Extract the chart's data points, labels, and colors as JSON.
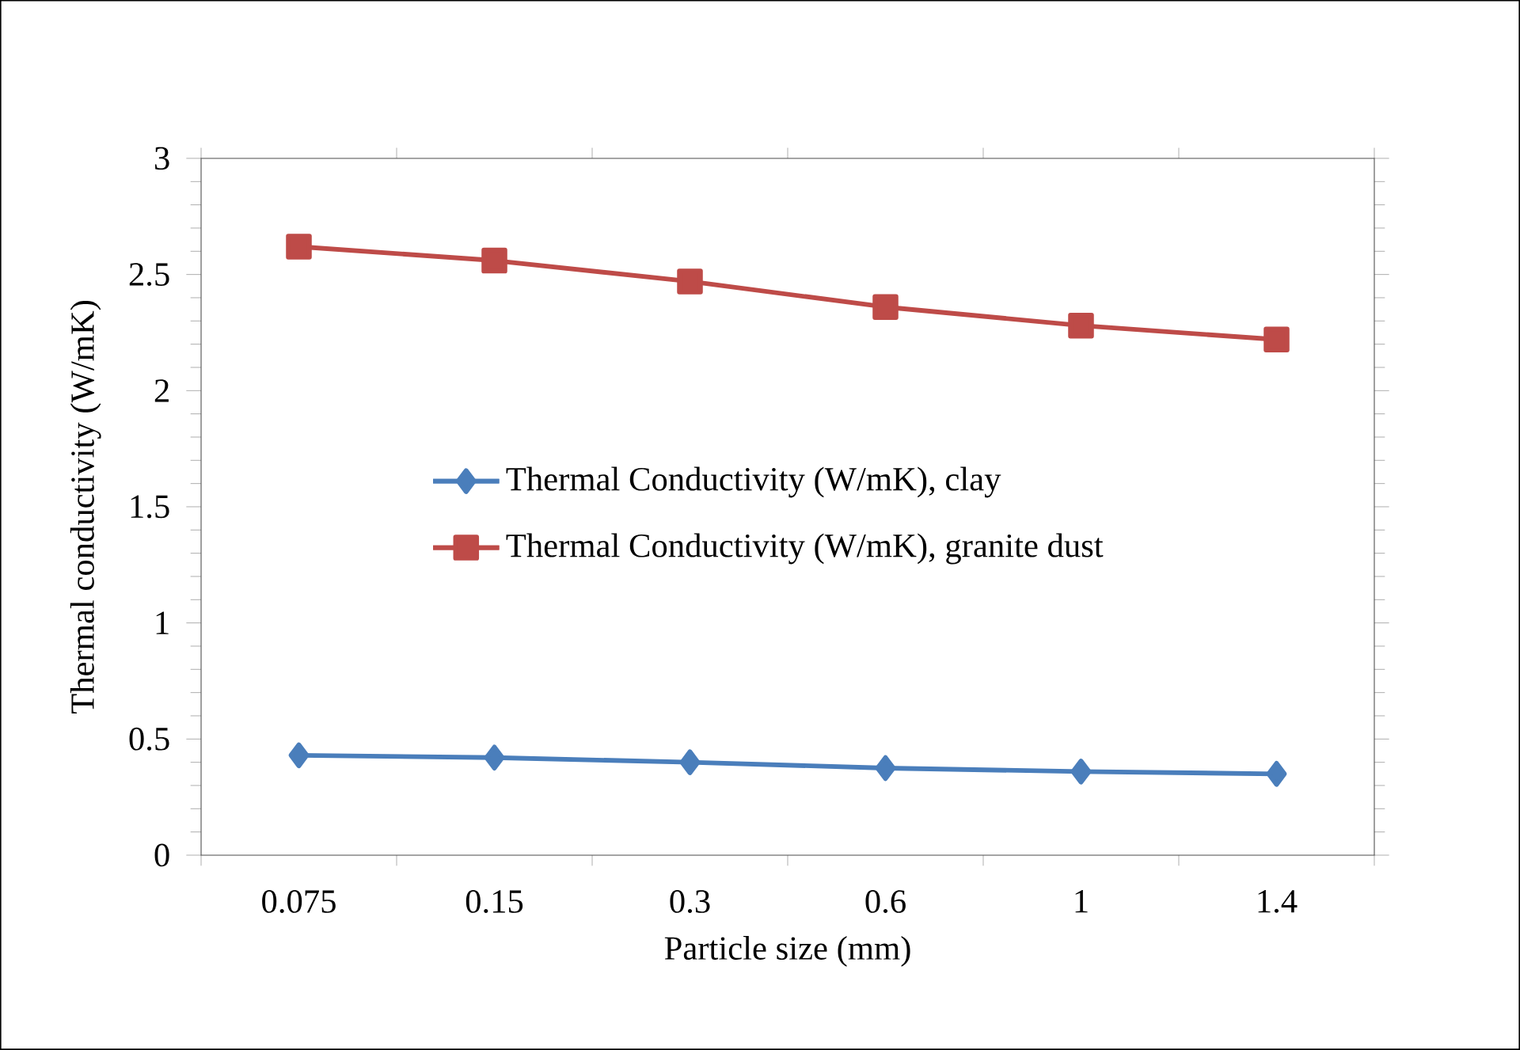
{
  "chart_data": {
    "type": "line",
    "xlabel": "Particle size (mm)",
    "ylabel": "Thermal conductivity (W/mK)",
    "categories": [
      "0.075",
      "0.15",
      "0.3",
      "0.6",
      "1",
      "1.4"
    ],
    "series": [
      {
        "name": "Thermal Conductivity (W/mK), clay",
        "color": "#4a7ebb",
        "marker": "diamond",
        "values": [
          0.43,
          0.42,
          0.4,
          0.375,
          0.36,
          0.35
        ]
      },
      {
        "name": "Thermal Conductivity (W/mK), granite dust",
        "color": "#be4b48",
        "marker": "square",
        "values": [
          2.62,
          2.56,
          2.47,
          2.36,
          2.28,
          2.22
        ]
      }
    ],
    "ylim": [
      0,
      3
    ],
    "yticks": [
      0,
      0.5,
      1,
      1.5,
      2,
      2.5,
      3
    ],
    "grid": false,
    "legend": "left",
    "line_style": "solid"
  }
}
